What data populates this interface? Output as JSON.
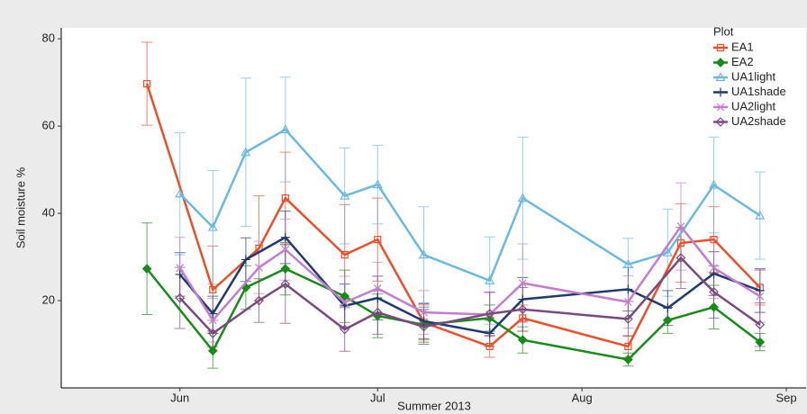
{
  "chart_data": {
    "type": "line",
    "xlabel": "Summer 2013",
    "ylabel": "Soil moisture %",
    "legend_title": "Plot",
    "legend": "top-right",
    "xlim": [
      -18,
      95
    ],
    "xticks": [
      {
        "value": 0,
        "label": "Jun"
      },
      {
        "value": 30,
        "label": "Jul"
      },
      {
        "value": 61,
        "label": "Aug"
      },
      {
        "value": 92,
        "label": "Sep"
      }
    ],
    "ylim": [
      0,
      82.5
    ],
    "yticks": [
      20,
      40,
      60,
      80
    ],
    "series": [
      {
        "name": "EA1",
        "color": "#e8502a",
        "marker": "square",
        "x": [
          -5,
          5,
          12,
          16,
          25,
          30,
          37,
          47,
          52,
          68,
          76,
          81,
          88
        ],
        "values": [
          69.7,
          22.5,
          32,
          43.5,
          30.5,
          34,
          15,
          9.5,
          16,
          9.5,
          33.2,
          34,
          23
        ],
        "errors": [
          9.5,
          10,
          12,
          10.5,
          11.5,
          9.5,
          4,
          2.5,
          3,
          2.5,
          9,
          7.5,
          4
        ]
      },
      {
        "name": "EA2",
        "color": "#1a8a1a",
        "marker": "diamond-filled",
        "x": [
          -5,
          5,
          10,
          16,
          25,
          30,
          37,
          47,
          52,
          68,
          74,
          81,
          88
        ],
        "values": [
          27.3,
          8.5,
          23,
          27.3,
          21,
          16.5,
          14.5,
          16,
          11,
          6.5,
          15.5,
          18.5,
          10.5
        ],
        "errors": [
          10.5,
          4,
          5,
          6,
          6,
          5,
          4,
          3,
          3,
          1.5,
          3,
          5,
          2
        ]
      },
      {
        "name": "UA1light",
        "color": "#6bb8e0",
        "marker": "triangle",
        "x": [
          0,
          5,
          10,
          16,
          25,
          30,
          37,
          47,
          52,
          68,
          74,
          81,
          88
        ],
        "values": [
          44.5,
          36.8,
          54,
          59.2,
          44,
          46.6,
          30.5,
          24.6,
          43.5,
          28.3,
          31,
          46.5,
          39.5
        ],
        "errors": [
          14,
          13,
          17,
          12,
          11,
          9,
          11,
          10,
          14,
          6,
          10,
          11,
          10
        ]
      },
      {
        "name": "UA1shade",
        "color": "#1f3a6e",
        "marker": "plus",
        "x": [
          0,
          5,
          10,
          16,
          25,
          30,
          37,
          47,
          52,
          68,
          74,
          81,
          88
        ],
        "values": [
          26,
          17,
          29.4,
          34.5,
          18.8,
          20.6,
          15.3,
          12.5,
          20.3,
          22.6,
          18.3,
          26.2,
          22.3
        ],
        "errors": [
          5,
          4,
          5,
          6,
          5,
          5,
          4,
          3,
          5,
          5,
          4,
          5,
          5
        ]
      },
      {
        "name": "UA2light",
        "color": "#c47ccf",
        "marker": "cross",
        "x": [
          0,
          5,
          12,
          16,
          25,
          30,
          37,
          47,
          52,
          68,
          76,
          81,
          88
        ],
        "values": [
          27.5,
          15.5,
          27.6,
          31.7,
          19.6,
          22.8,
          17.3,
          16.8,
          24,
          19.7,
          37,
          27.5,
          21
        ],
        "errors": [
          7,
          5,
          6,
          7,
          6,
          6,
          5,
          5,
          9,
          6,
          10,
          7,
          6
        ]
      },
      {
        "name": "UA2shade",
        "color": "#7a4a7e",
        "marker": "diamond",
        "x": [
          0,
          5,
          12,
          16,
          25,
          30,
          37,
          47,
          52,
          68,
          76,
          81,
          88
        ],
        "values": [
          20.6,
          12.5,
          20,
          23.8,
          13.4,
          17.3,
          14,
          17,
          18,
          15.8,
          29.8,
          22,
          14.5
        ],
        "errors": [
          7,
          3,
          5,
          9,
          5,
          5,
          4,
          5,
          5,
          4,
          7,
          6,
          5
        ]
      }
    ]
  }
}
